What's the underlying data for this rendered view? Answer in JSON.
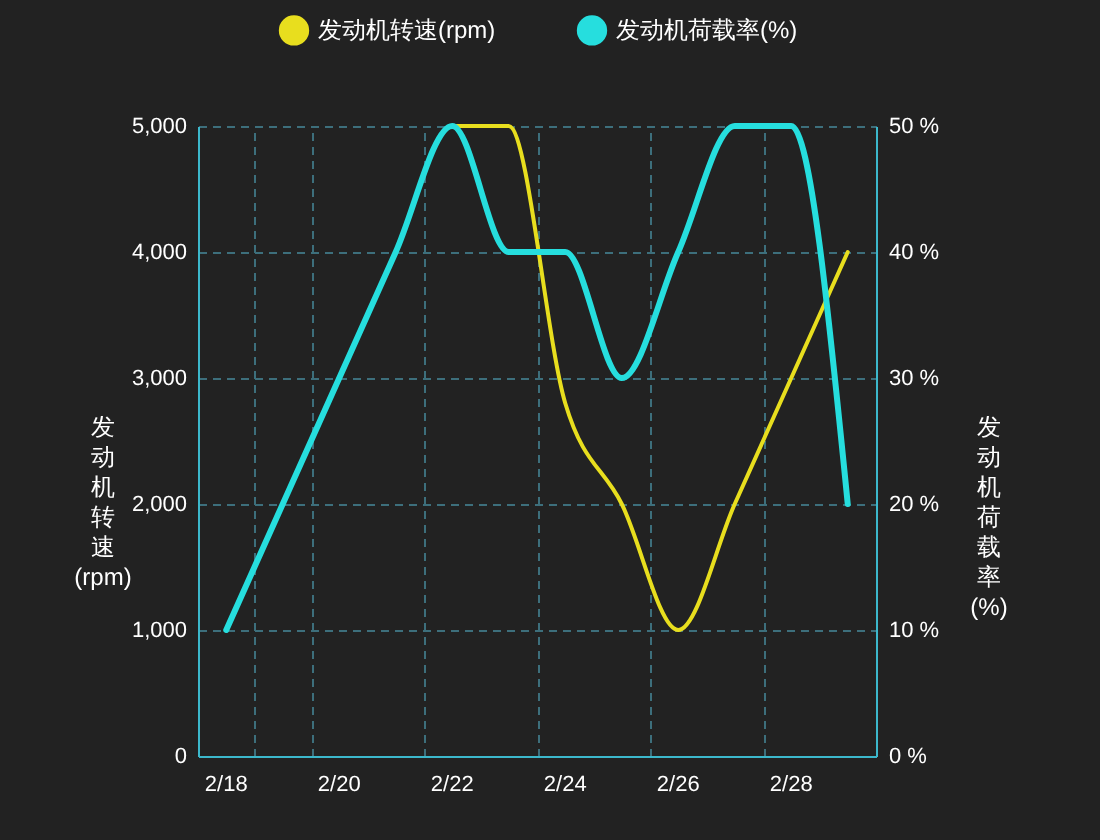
{
  "chart_data": {
    "type": "line",
    "ylabel": "发动机转速(rpm)",
    "y2label": "发动机荷载率(%)",
    "categories": [
      "2/18",
      null,
      "2/20",
      null,
      "2/22",
      null,
      "2/24",
      null,
      "2/26",
      null,
      "2/28",
      null
    ],
    "series": [
      {
        "name": "发动机转速(rpm)",
        "color": "#e8de1e",
        "values": [
          null,
          null,
          null,
          null,
          5000,
          5000,
          2800,
          2000,
          1000,
          2000,
          3000,
          4000
        ]
      },
      {
        "name": "发动机荷载率(%)",
        "color": "#26dede",
        "axis": "y2",
        "values": [
          10,
          20,
          30,
          40,
          50,
          40,
          40,
          30,
          40,
          50,
          50,
          20
        ]
      }
    ],
    "ylim": [
      0,
      5000
    ],
    "yticks": [
      0,
      {
        "value": 1000,
        "label": "1,000"
      },
      {
        "value": 2000,
        "label": "2,000"
      },
      {
        "value": 3000,
        "label": "3,000"
      },
      {
        "value": 4000,
        "label": "4,000"
      },
      {
        "value": 5000,
        "label": "5,000"
      }
    ],
    "y2lim": [
      0,
      50
    ],
    "y2ticks": [
      {
        "value": 0,
        "label": "0 %"
      },
      {
        "value": 10,
        "label": "10 %"
      },
      {
        "value": 20,
        "label": "20 %"
      },
      {
        "value": 30,
        "label": "30 %"
      },
      {
        "value": 40,
        "label": "40 %"
      },
      {
        "value": 50,
        "label": "50 %"
      }
    ],
    "grid": true,
    "legend": "top",
    "marker": "none",
    "line_style": "solid"
  }
}
